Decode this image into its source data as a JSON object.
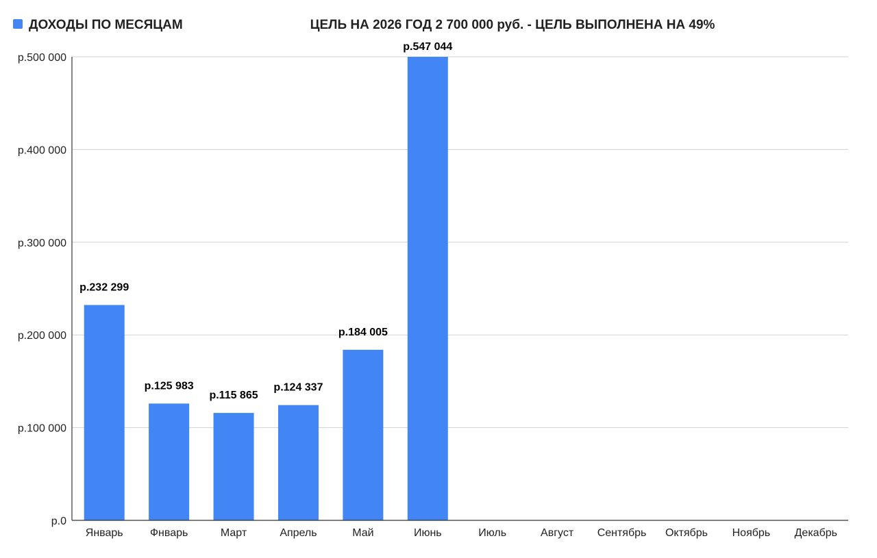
{
  "legend": {
    "label": "ДОХОДЫ ПО МЕСЯЦАМ",
    "color": "#4285f4"
  },
  "title": "ЦЕЛЬ НА 2026 ГОД 2 700 000 руб. - ЦЕЛЬ ВЫПОЛНЕНА НА 49%",
  "chart_data": {
    "type": "bar",
    "title": "ЦЕЛЬ НА 2026 ГОД 2 700 000 руб. - ЦЕЛЬ ВЫПОЛНЕНА НА 49%",
    "xlabel": "",
    "ylabel": "",
    "categories": [
      "Январь",
      "Фнварь",
      "Март",
      "Апрель",
      "Май",
      "Июнь",
      "Июль",
      "Август",
      "Сентябрь",
      "Октябрь",
      "Ноябрь",
      "Декабрь"
    ],
    "series": [
      {
        "name": "ДОХОДЫ ПО МЕСЯЦАМ",
        "color": "#4285f4",
        "values": [
          232299,
          125983,
          115865,
          124337,
          184005,
          547044,
          null,
          null,
          null,
          null,
          null,
          null
        ],
        "data_labels": [
          "р.232 299",
          "р.125 983",
          "р.115 865",
          "р.124 337",
          "р.184 005",
          "р.547 044",
          null,
          null,
          null,
          null,
          null,
          null
        ]
      }
    ],
    "ylim": [
      0,
      500000
    ],
    "yticks": [
      0,
      100000,
      200000,
      300000,
      400000,
      500000
    ],
    "ytick_labels": [
      "р.0",
      "р.100 000",
      "р.200 000",
      "р.300 000",
      "р.400 000",
      "р.500 000"
    ],
    "grid": true,
    "legend_position": "top-left"
  }
}
